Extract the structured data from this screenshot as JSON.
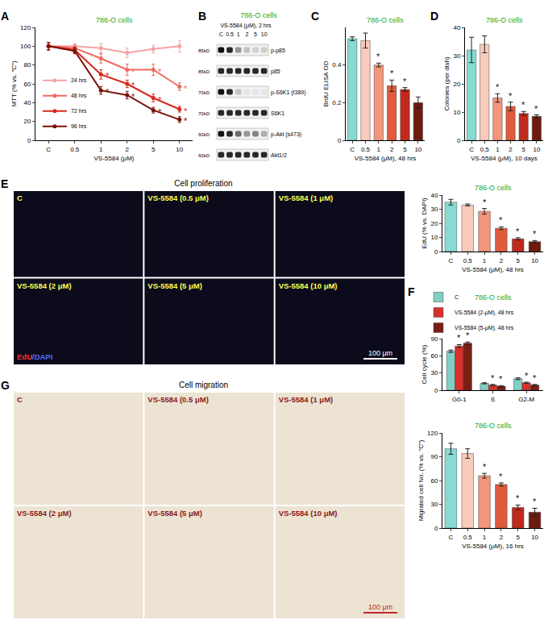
{
  "chart_data": [
    {
      "panel": "A",
      "type": "line",
      "subtitle": "786-O cells",
      "y_label": "MTT (% vs. \"C\")",
      "x_label": "VS-5584 (μM)",
      "categories": [
        "C",
        "0.5",
        "1",
        "2",
        "5",
        "10"
      ],
      "ylim": [
        0,
        120
      ],
      "yticks": [
        0,
        20,
        40,
        60,
        80,
        100,
        120
      ],
      "legend": "bottom left",
      "marker": "circle",
      "series": [
        {
          "name": "24 hrs",
          "color": "#f5a3a3",
          "values": [
            100,
            100,
            98,
            93,
            97,
            100
          ],
          "errors": [
            4,
            3,
            5,
            5,
            4,
            6
          ]
        },
        {
          "name": "48 hrs",
          "color": "#ee6a5f",
          "values": [
            100,
            98,
            87,
            75,
            75,
            57
          ],
          "errors": [
            4,
            3,
            5,
            6,
            6,
            4
          ]
        },
        {
          "name": "72 hrs",
          "color": "#d8281e",
          "values": [
            100,
            96,
            70,
            60,
            45,
            33
          ],
          "errors": [
            4,
            3,
            5,
            4,
            4,
            3
          ]
        },
        {
          "name": "96 hrs",
          "color": "#7a1208",
          "values": [
            100,
            95,
            53,
            48,
            32,
            22
          ],
          "errors": [
            4,
            3,
            4,
            4,
            3,
            3
          ]
        }
      ],
      "annotations": [
        {
          "text": "*",
          "category": "2",
          "series": "48 hrs"
        },
        {
          "text": "*",
          "category": "5",
          "series": "48 hrs"
        },
        {
          "text": "*",
          "category": "10",
          "series": "48 hrs"
        },
        {
          "text": "*",
          "category": "1",
          "series": "72 hrs"
        },
        {
          "text": "*",
          "category": "2",
          "series": "72 hrs"
        },
        {
          "text": "*",
          "category": "5",
          "series": "72 hrs"
        },
        {
          "text": "*",
          "category": "10",
          "series": "72 hrs"
        },
        {
          "text": "*",
          "category": "1",
          "series": "96 hrs"
        },
        {
          "text": "*",
          "category": "2",
          "series": "96 hrs"
        },
        {
          "text": "*",
          "category": "5",
          "series": "96 hrs"
        },
        {
          "text": "*",
          "category": "10",
          "series": "96 hrs"
        }
      ]
    },
    {
      "panel": "C",
      "type": "bar",
      "subtitle": "786-O cells",
      "y_label": "BrdU ELISA OD",
      "x_label": "VS-5584 (μM), 48 hrs",
      "categories": [
        "C",
        "0.5",
        "1",
        "2",
        "5",
        "10"
      ],
      "values": [
        0.54,
        0.53,
        0.4,
        0.29,
        0.27,
        0.2
      ],
      "errors": [
        0.01,
        0.04,
        0.01,
        0.03,
        0.01,
        0.03
      ],
      "colors": [
        "#86dbd2",
        "#f9cbbb",
        "#f3967b",
        "#e05a3c",
        "#c02a1c",
        "#6e1a0e"
      ],
      "ylim": [
        0,
        0.6
      ],
      "yticks": [
        0,
        0.2,
        0.4
      ],
      "annotations": [
        {
          "text": "*",
          "category": "1"
        },
        {
          "text": "*",
          "category": "2"
        },
        {
          "text": "*",
          "category": "5"
        }
      ]
    },
    {
      "panel": "D",
      "type": "bar",
      "subtitle": "786-O cells",
      "y_label": "Colonies (per dish)",
      "x_label": "VS-5584 (μM), 10 days",
      "categories": [
        "C",
        "0.5",
        "1",
        "2",
        "5",
        "10"
      ],
      "values": [
        32,
        34,
        15,
        12,
        9.5,
        8.5
      ],
      "errors": [
        4.5,
        3,
        1.5,
        1.5,
        0.7,
        0.5
      ],
      "colors": [
        "#86dbd2",
        "#f9cbbb",
        "#f3967b",
        "#e05a3c",
        "#c02a1c",
        "#6e1a0e"
      ],
      "ylim": [
        0,
        40
      ],
      "yticks": [
        0,
        10,
        20,
        30,
        40
      ],
      "annotations": [
        {
          "text": "*",
          "category": "1"
        },
        {
          "text": "*",
          "category": "2"
        },
        {
          "text": "*",
          "category": "5"
        },
        {
          "text": "*",
          "category": "10"
        }
      ]
    },
    {
      "type": "bar",
      "subtitle": "786-O cells",
      "y_label": "EdU (% vs. DAPI)",
      "x_label": "VS-5584 (μM), 48 hrs",
      "categories": [
        "C",
        "0.5",
        "1",
        "2",
        "5",
        "10"
      ],
      "values": [
        35,
        33,
        28.5,
        16.5,
        9,
        7
      ],
      "errors": [
        2,
        0.7,
        2,
        1,
        0.8,
        0.8
      ],
      "colors": [
        "#86dbd2",
        "#f9cbbb",
        "#f3967b",
        "#e05a3c",
        "#c02a1c",
        "#6e1a0e"
      ],
      "ylim": [
        0,
        40
      ],
      "yticks": [
        0,
        10,
        20,
        30,
        40
      ],
      "annotations": [
        {
          "text": "*",
          "category": "1"
        },
        {
          "text": "*",
          "category": "2"
        },
        {
          "text": "*",
          "category": "5"
        },
        {
          "text": "*",
          "category": "10"
        }
      ]
    },
    {
      "panel": "F",
      "type": "bar",
      "subtitle": "786-O cells",
      "y_label": "Cell cycle (%)",
      "categories": [
        "G0-1",
        "S",
        "G2-M"
      ],
      "legend": "top",
      "series": [
        {
          "name": "C",
          "color": "#7fcfc4",
          "values": [
            68,
            12,
            20
          ],
          "errors": [
            2,
            1,
            1.5
          ]
        },
        {
          "name": "VS-5584 (2-μM), 48 hrs",
          "color": "#d8302a",
          "values": [
            77,
            9,
            13
          ],
          "errors": [
            2.5,
            1,
            1
          ]
        },
        {
          "name": "VS-5584 (5-μM), 48 hrs",
          "color": "#7a1e14",
          "values": [
            82,
            7,
            9
          ],
          "errors": [
            2,
            1,
            1
          ]
        }
      ],
      "ylim": [
        0,
        90
      ],
      "yticks": [
        0,
        30,
        60,
        90
      ],
      "annotations": [
        {
          "text": "*",
          "category": "G0-1",
          "series": "VS-5584 (2-μM), 48 hrs"
        },
        {
          "text": "*",
          "category": "G0-1",
          "series": "VS-5584 (5-μM), 48 hrs"
        },
        {
          "text": "*",
          "category": "S",
          "series": "VS-5584 (2-μM), 48 hrs"
        },
        {
          "text": "*",
          "category": "S",
          "series": "VS-5584 (5-μM), 48 hrs"
        },
        {
          "text": "*",
          "category": "G2-M",
          "series": "VS-5584 (2-μM), 48 hrs"
        },
        {
          "text": "*",
          "category": "G2-M",
          "series": "VS-5584 (5-μM), 48 hrs"
        }
      ]
    },
    {
      "type": "bar",
      "subtitle": "786-O cells",
      "y_label": "Migrated cell No. (% vs. \"C\")",
      "x_label": "VS-5584 (μM), 16 hrs",
      "categories": [
        "C",
        "0.5",
        "1",
        "2",
        "5",
        "10"
      ],
      "values": [
        100,
        94,
        66,
        55,
        26,
        20
      ],
      "errors": [
        7,
        6,
        3,
        2,
        3,
        5
      ],
      "colors": [
        "#86dbd2",
        "#f9cbbb",
        "#f3967b",
        "#e05a3c",
        "#c02a1c",
        "#6e1a0e"
      ],
      "ylim": [
        0,
        120
      ],
      "yticks": [
        0,
        30,
        60,
        90,
        120
      ],
      "annotations": [
        {
          "text": "*",
          "category": "1"
        },
        {
          "text": "*",
          "category": "2"
        },
        {
          "text": "*",
          "category": "5"
        },
        {
          "text": "*",
          "category": "10"
        }
      ]
    }
  ],
  "blot": {
    "panel": "B",
    "title": "786-O cells",
    "header": "VS-5584 (μM), 2 hrs",
    "lanes": [
      "C",
      "0.5",
      "1",
      "2",
      "5",
      "10"
    ],
    "rows": [
      {
        "label": "p-p85",
        "size": "85kD",
        "intensity": [
          1,
          0.9,
          0.4,
          0.2,
          0.15,
          0.15
        ]
      },
      {
        "label": "p85",
        "size": "85kD",
        "intensity": [
          0.9,
          0.9,
          0.9,
          0.9,
          0.9,
          0.9
        ]
      },
      {
        "label": "p-S6K1 (t389)",
        "size": "70kD",
        "intensity": [
          1,
          0.9,
          0.2,
          0.05,
          0.05,
          0.05
        ]
      },
      {
        "label": "S6K1",
        "size": "70kD",
        "intensity": [
          0.9,
          0.9,
          0.9,
          0.9,
          0.9,
          0.9
        ]
      },
      {
        "label": "p-Akt (s473)",
        "size": "60kD",
        "intensity": [
          1,
          0.9,
          0.6,
          0.4,
          0.5,
          0.3
        ]
      },
      {
        "label": "Akt1/2",
        "size": "60kD",
        "intensity": [
          0.9,
          0.9,
          0.9,
          0.9,
          0.9,
          0.9
        ]
      }
    ]
  },
  "image_panels": [
    {
      "panel": "E",
      "title": "Cell proliferation",
      "labels": [
        "C",
        "VS-5584 (0.5 μM)",
        "VS-5584 (1 μM)",
        "VS-5584 (2 μM)",
        "VS-5584 (5 μM)",
        "VS-5584 (10 μM)"
      ],
      "stain": [
        "EdU",
        "/DAPI"
      ],
      "scale_bar": "100 μm"
    },
    {
      "panel": "G",
      "title": "Cell migration",
      "labels": [
        "C",
        "VS-5584 (0.5 μM)",
        "VS-5584 (1 μM)",
        "VS-5584 (2 μM)",
        "VS-5584 (5 μM)",
        "VS-5584 (10 μM)"
      ],
      "scale_bar": "100 μm"
    }
  ]
}
